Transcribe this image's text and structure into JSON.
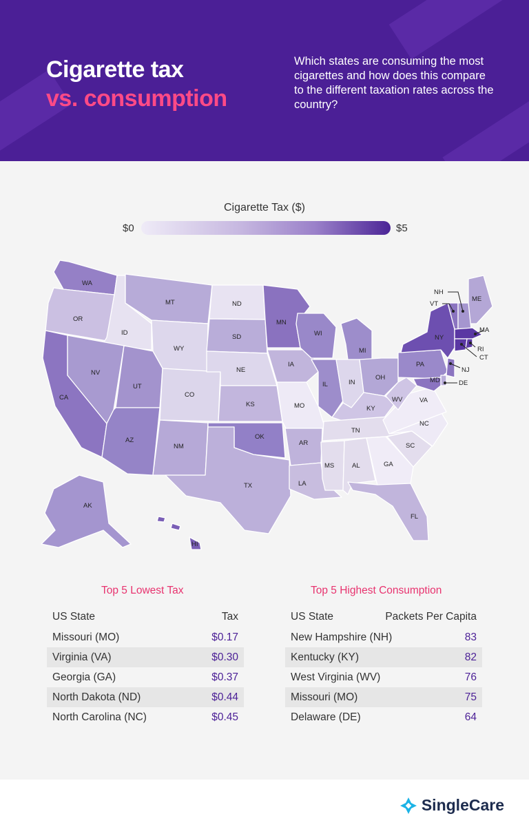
{
  "header": {
    "title_line1": "Cigarette tax",
    "title_line2": "vs. consumption",
    "subtitle": "Which states are consuming the most cigarettes and how does this compare to the different taxation rates across the country?"
  },
  "legend": {
    "title": "Cigarette Tax ($)",
    "min_label": "$0",
    "max_label": "$5",
    "gradient_colors": [
      "#efebf7",
      "#c6b7e0",
      "#9a80c9",
      "#4b2596"
    ]
  },
  "map": {
    "states": [
      {
        "abbr": "WA",
        "label": "WA"
      },
      {
        "abbr": "OR",
        "label": "OR"
      },
      {
        "abbr": "CA",
        "label": "CA"
      },
      {
        "abbr": "ID",
        "label": "ID"
      },
      {
        "abbr": "NV",
        "label": "NV"
      },
      {
        "abbr": "MT",
        "label": "MT"
      },
      {
        "abbr": "WY",
        "label": "WY"
      },
      {
        "abbr": "UT",
        "label": "UT"
      },
      {
        "abbr": "AZ",
        "label": "AZ"
      },
      {
        "abbr": "CO",
        "label": "CO"
      },
      {
        "abbr": "NM",
        "label": "NM"
      },
      {
        "abbr": "ND",
        "label": "ND"
      },
      {
        "abbr": "SD",
        "label": "SD"
      },
      {
        "abbr": "NE",
        "label": "NE"
      },
      {
        "abbr": "KS",
        "label": "KS"
      },
      {
        "abbr": "OK",
        "label": "OK"
      },
      {
        "abbr": "TX",
        "label": "TX"
      },
      {
        "abbr": "MN",
        "label": "MN"
      },
      {
        "abbr": "IA",
        "label": "IA"
      },
      {
        "abbr": "MO",
        "label": "MO"
      },
      {
        "abbr": "AR",
        "label": "AR"
      },
      {
        "abbr": "LA",
        "label": "LA"
      },
      {
        "abbr": "WI",
        "label": "WI"
      },
      {
        "abbr": "IL",
        "label": "IL"
      },
      {
        "abbr": "MI",
        "label": "MI"
      },
      {
        "abbr": "IN",
        "label": "IN"
      },
      {
        "abbr": "OH",
        "label": "OH"
      },
      {
        "abbr": "KY",
        "label": "KY"
      },
      {
        "abbr": "TN",
        "label": "TN"
      },
      {
        "abbr": "MS",
        "label": "MS"
      },
      {
        "abbr": "AL",
        "label": "AL"
      },
      {
        "abbr": "GA",
        "label": "GA"
      },
      {
        "abbr": "FL",
        "label": "FL"
      },
      {
        "abbr": "SC",
        "label": "SC"
      },
      {
        "abbr": "NC",
        "label": "NC"
      },
      {
        "abbr": "VA",
        "label": "VA"
      },
      {
        "abbr": "WV",
        "label": "WV"
      },
      {
        "abbr": "PA",
        "label": "PA"
      },
      {
        "abbr": "NY",
        "label": "NY"
      },
      {
        "abbr": "ME",
        "label": "ME"
      },
      {
        "abbr": "AK",
        "label": "AK"
      },
      {
        "abbr": "HI",
        "label": "HI"
      },
      {
        "abbr": "NH",
        "label": "NH"
      },
      {
        "abbr": "VT",
        "label": "VT"
      },
      {
        "abbr": "MA",
        "label": "MA"
      },
      {
        "abbr": "RI",
        "label": "RI"
      },
      {
        "abbr": "CT",
        "label": "CT"
      },
      {
        "abbr": "NJ",
        "label": "NJ"
      },
      {
        "abbr": "MD",
        "label": "MD"
      },
      {
        "abbr": "DE",
        "label": "DE"
      }
    ]
  },
  "lowest_tax": {
    "title": "Top 5 Lowest Tax",
    "col_state": "US State",
    "col_value": "Tax",
    "rows": [
      {
        "state": "Missouri (MO)",
        "value": "$0.17"
      },
      {
        "state": "Virginia (VA)",
        "value": "$0.30"
      },
      {
        "state": "Georgia (GA)",
        "value": "$0.37"
      },
      {
        "state": "North Dakota (ND)",
        "value": "$0.44"
      },
      {
        "state": "North Carolina (NC)",
        "value": "$0.45"
      }
    ]
  },
  "highest_consumption": {
    "title": "Top 5 Highest Consumption",
    "col_state": "US State",
    "col_value": "Packets Per Capita",
    "rows": [
      {
        "state": "New Hampshire (NH)",
        "value": "83"
      },
      {
        "state": "Kentucky (KY)",
        "value": "82"
      },
      {
        "state": "West Virginia (WV)",
        "value": "76"
      },
      {
        "state": "Missouri (MO)",
        "value": "75"
      },
      {
        "state": "Delaware (DE)",
        "value": "64"
      }
    ]
  },
  "footer": {
    "brand": "SingleCare",
    "brand_colors": [
      "#1bb3e6",
      "#1d2c4e"
    ]
  }
}
